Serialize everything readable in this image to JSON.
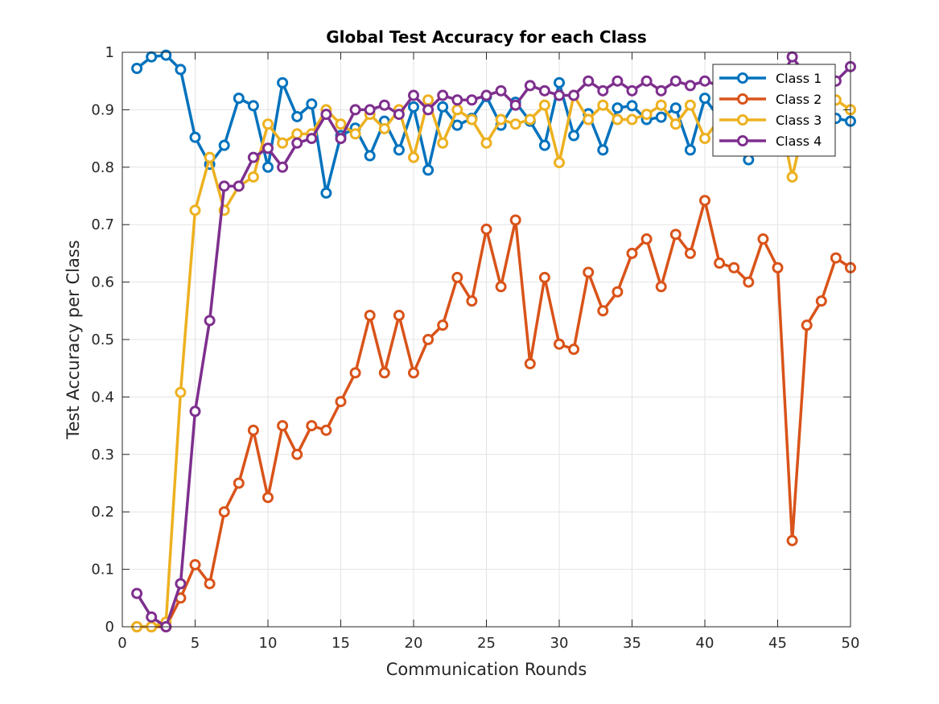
{
  "chart_data": {
    "type": "line",
    "title": "Global Test Accuracy for each Class",
    "xlabel": "Communication Rounds",
    "ylabel": "Test Accuracy per Class",
    "xlim": [
      0,
      50
    ],
    "ylim": [
      0,
      1
    ],
    "xticks": [
      0,
      5,
      10,
      15,
      20,
      25,
      30,
      35,
      40,
      45,
      50
    ],
    "yticks": [
      0,
      0.1,
      0.2,
      0.3,
      0.4,
      0.5,
      0.6,
      0.7,
      0.8,
      0.9,
      1
    ],
    "ytick_labels": [
      "0",
      "0.1",
      "0.2",
      "0.3",
      "0.4",
      "0.5",
      "0.6",
      "0.7",
      "0.8",
      "0.9",
      "1"
    ],
    "grid": true,
    "legend_position": "top-right",
    "x": [
      1,
      2,
      3,
      4,
      5,
      6,
      7,
      8,
      9,
      10,
      11,
      12,
      13,
      14,
      15,
      16,
      17,
      18,
      19,
      20,
      21,
      22,
      23,
      24,
      25,
      26,
      27,
      28,
      29,
      30,
      31,
      32,
      33,
      34,
      35,
      36,
      37,
      38,
      39,
      40,
      41,
      42,
      43,
      44,
      45,
      46,
      47,
      48,
      49,
      50
    ],
    "series": [
      {
        "name": "Class 1",
        "color": "#0072BD",
        "values": [
          0.972,
          0.992,
          0.995,
          0.97,
          0.852,
          0.805,
          0.838,
          0.92,
          0.907,
          0.8,
          0.947,
          0.888,
          0.91,
          0.755,
          0.855,
          0.868,
          0.82,
          0.88,
          0.83,
          0.905,
          0.795,
          0.905,
          0.873,
          0.885,
          0.923,
          0.873,
          0.913,
          0.88,
          0.838,
          0.947,
          0.855,
          0.893,
          0.83,
          0.903,
          0.907,
          0.883,
          0.887,
          0.903,
          0.83,
          0.92,
          0.885,
          0.88,
          0.813,
          0.88,
          0.875,
          0.88,
          0.878,
          0.905,
          0.885,
          0.88
        ]
      },
      {
        "name": "Class 2",
        "color": "#D95319",
        "values": [
          0.0,
          0.0,
          0.0,
          0.05,
          0.108,
          0.075,
          0.2,
          0.25,
          0.342,
          0.225,
          0.35,
          0.3,
          0.35,
          0.342,
          0.392,
          0.442,
          0.542,
          0.442,
          0.542,
          0.442,
          0.5,
          0.525,
          0.608,
          0.567,
          0.692,
          0.592,
          0.708,
          0.458,
          0.608,
          0.492,
          0.483,
          0.617,
          0.55,
          0.583,
          0.65,
          0.675,
          0.592,
          0.683,
          0.65,
          0.742,
          0.633,
          0.625,
          0.6,
          0.675,
          0.625,
          0.15,
          0.525,
          0.567,
          0.642,
          0.625
        ]
      },
      {
        "name": "Class 3",
        "color": "#EDB120",
        "values": [
          0.0,
          0.0,
          0.008,
          0.408,
          0.725,
          0.817,
          0.725,
          0.767,
          0.783,
          0.875,
          0.842,
          0.858,
          0.858,
          0.9,
          0.875,
          0.858,
          0.892,
          0.867,
          0.9,
          0.817,
          0.917,
          0.842,
          0.9,
          0.883,
          0.842,
          0.883,
          0.875,
          0.883,
          0.908,
          0.808,
          0.925,
          0.883,
          0.908,
          0.883,
          0.883,
          0.892,
          0.908,
          0.875,
          0.908,
          0.85,
          0.883,
          0.9,
          0.917,
          0.875,
          0.908,
          0.783,
          0.892,
          0.908,
          0.917,
          0.9
        ]
      },
      {
        "name": "Class 4",
        "color": "#7E2F8E",
        "values": [
          0.058,
          0.017,
          0.0,
          0.075,
          0.375,
          0.533,
          0.767,
          0.767,
          0.817,
          0.833,
          0.8,
          0.842,
          0.85,
          0.892,
          0.85,
          0.9,
          0.9,
          0.908,
          0.892,
          0.925,
          0.9,
          0.925,
          0.917,
          0.917,
          0.925,
          0.933,
          0.908,
          0.942,
          0.933,
          0.925,
          0.925,
          0.95,
          0.933,
          0.95,
          0.933,
          0.95,
          0.933,
          0.95,
          0.942,
          0.95,
          0.942,
          0.95,
          0.942,
          0.95,
          0.942,
          0.992,
          0.958,
          0.967,
          0.95,
          0.975
        ]
      }
    ]
  }
}
